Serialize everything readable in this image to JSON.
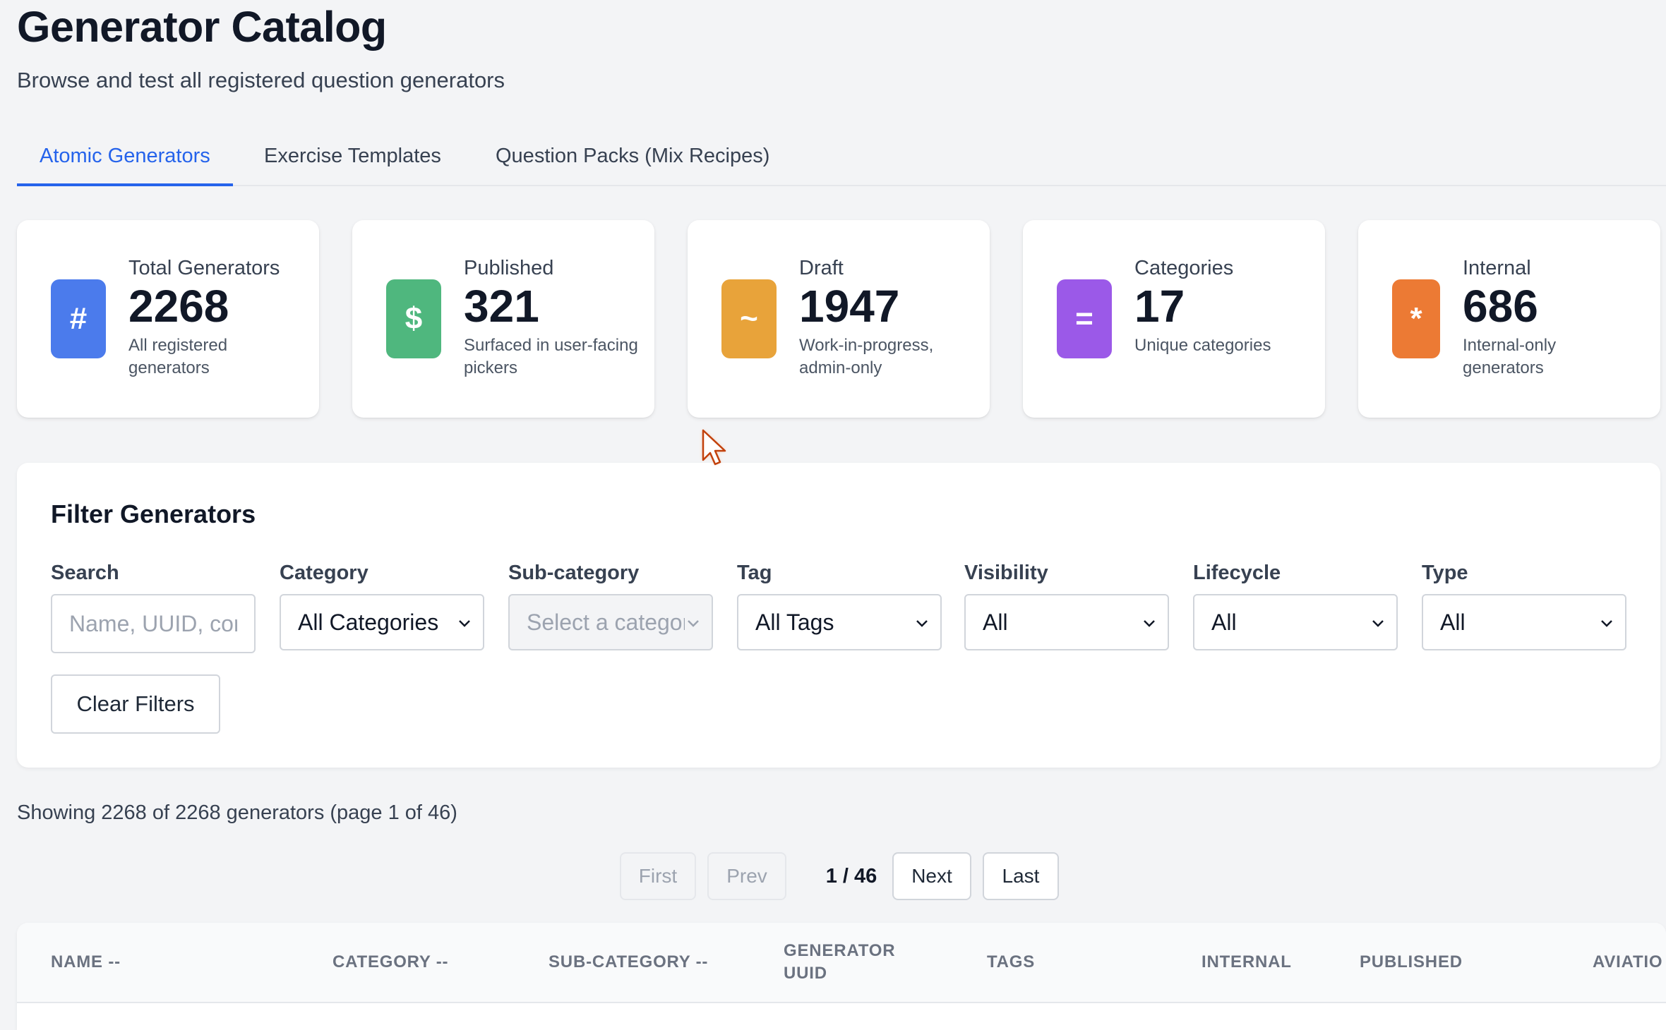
{
  "header": {
    "title": "Generator Catalog",
    "subtitle": "Browse and test all registered question generators"
  },
  "tabs": [
    {
      "label": "Atomic Generators",
      "active": true
    },
    {
      "label": "Exercise Templates",
      "active": false
    },
    {
      "label": "Question Packs (Mix Recipes)",
      "active": false
    }
  ],
  "stats": [
    {
      "icon": "#",
      "icon_name": "hash-icon",
      "color": "#4b7bec",
      "label": "Total Generators",
      "value": "2268",
      "desc": "All registered generators"
    },
    {
      "icon": "$",
      "icon_name": "dollar-icon",
      "color": "#4fb77e",
      "label": "Published",
      "value": "321",
      "desc": "Surfaced in user-facing pickers"
    },
    {
      "icon": "~",
      "icon_name": "tilde-icon",
      "color": "#e8a33a",
      "label": "Draft",
      "value": "1947",
      "desc": "Work-in-progress, admin-only"
    },
    {
      "icon": "=",
      "icon_name": "equals-icon",
      "color": "#9b59e8",
      "label": "Categories",
      "value": "17",
      "desc": "Unique categories"
    },
    {
      "icon": "*",
      "icon_name": "asterisk-icon",
      "color": "#ec7a34",
      "label": "Internal",
      "value": "686",
      "desc": "Internal-only generators"
    }
  ],
  "filters": {
    "title": "Filter Generators",
    "search": {
      "label": "Search",
      "placeholder": "Name, UUID, content...",
      "value": ""
    },
    "category": {
      "label": "Category",
      "value": "All Categories"
    },
    "subcategory": {
      "label": "Sub-category",
      "value": "Select a category",
      "disabled": true
    },
    "tag": {
      "label": "Tag",
      "value": "All Tags"
    },
    "visibility": {
      "label": "Visibility",
      "value": "All"
    },
    "lifecycle": {
      "label": "Lifecycle",
      "value": "All"
    },
    "type": {
      "label": "Type",
      "value": "All"
    },
    "clear_label": "Clear Filters"
  },
  "results": {
    "showing_text": "Showing 2268 of 2268 generators (page 1 of 46)"
  },
  "pagination": {
    "first": "First",
    "prev": "Prev",
    "indicator": "1 / 46",
    "next": "Next",
    "last": "Last"
  },
  "table": {
    "columns": [
      "NAME --",
      "CATEGORY --",
      "SUB-CATEGORY --",
      "GENERATOR UUID",
      "TAGS",
      "INTERNAL",
      "PUBLISHED",
      "AVIATIO"
    ]
  }
}
